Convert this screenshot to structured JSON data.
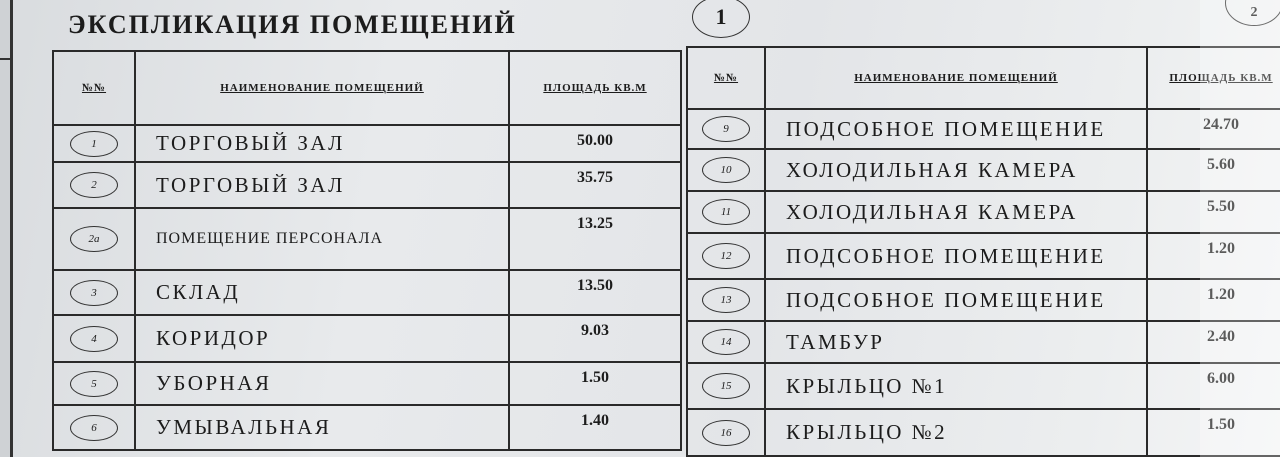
{
  "document": {
    "title": "ЭКСПЛИКАЦИЯ ПОМЕЩЕНИЙ",
    "page_marks": [
      "1",
      "2"
    ],
    "columns": {
      "number": "№№",
      "name": "НАИМЕНОВАНИЕ ПОМЕЩЕНИЙ",
      "area": "ПЛОЩАДЬ КВ.М"
    }
  },
  "left_table": [
    {
      "number": "1",
      "name": "ТОРГОВЫЙ ЗАЛ",
      "area": "50.00"
    },
    {
      "number": "2",
      "name": "ТОРГОВЫЙ ЗАЛ",
      "area": "35.75"
    },
    {
      "number": "2а",
      "name": "ПОМЕЩЕНИЕ ПЕРСОНАЛА",
      "area": "13.25"
    },
    {
      "number": "3",
      "name": "СКЛАД",
      "area": "13.50"
    },
    {
      "number": "4",
      "name": "КОРИДОР",
      "area": "9.03"
    },
    {
      "number": "5",
      "name": "УБОРНАЯ",
      "area": "1.50"
    },
    {
      "number": "6",
      "name": "УМЫВАЛЬНАЯ",
      "area": "1.40"
    }
  ],
  "right_table": [
    {
      "number": "9",
      "name": "ПОДСОБНОЕ ПОМЕЩЕНИЕ",
      "area": "24.70"
    },
    {
      "number": "10",
      "name": "ХОЛОДИЛЬНАЯ КАМЕРА",
      "area": "5.60"
    },
    {
      "number": "11",
      "name": "ХОЛОДИЛЬНАЯ КАМЕРА",
      "area": "5.50"
    },
    {
      "number": "12",
      "name": "ПОДСОБНОЕ ПОМЕЩЕНИЕ",
      "area": "1.20"
    },
    {
      "number": "13",
      "name": "ПОДСОБНОЕ ПОМЕЩЕНИЕ",
      "area": "1.20"
    },
    {
      "number": "14",
      "name": "ТАМБУР",
      "area": "2.40"
    },
    {
      "number": "15",
      "name": "КРЫЛЬЦО №1",
      "area": "6.00"
    },
    {
      "number": "16",
      "name": "КРЫЛЬЦО №2",
      "area": "1.50"
    }
  ]
}
